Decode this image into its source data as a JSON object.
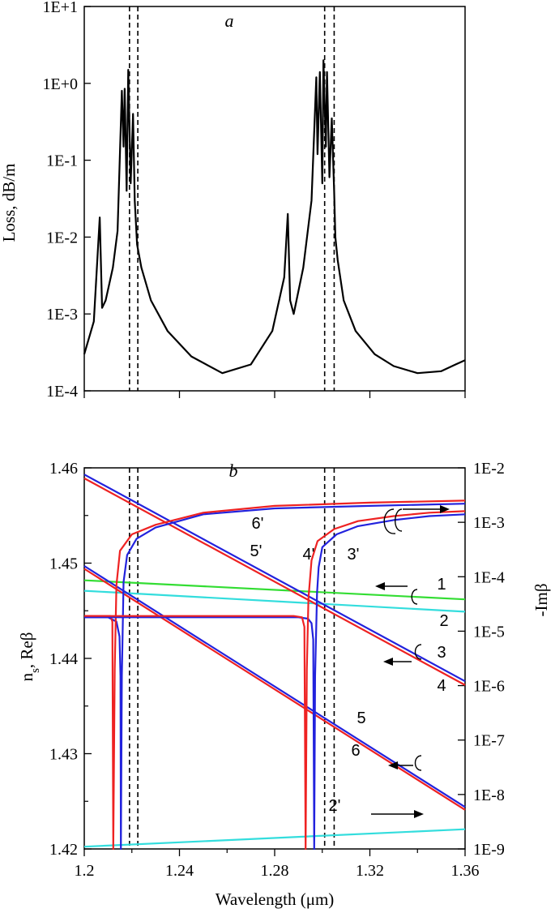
{
  "chart_data": [
    {
      "panel": "a",
      "type": "line",
      "panel_label": "a",
      "ylabel": "Loss, dB/m",
      "xlabel": "",
      "x_scale": "linear",
      "y_scale": "log",
      "xlim": [
        1.2,
        1.36
      ],
      "ylim": [
        0.0001,
        10
      ],
      "y_tick_labels": [
        "1E-4",
        "1E-3",
        "1E-2",
        "1E-1",
        "1E+0",
        "1E+1"
      ],
      "grid": false,
      "dashed_vlines": [
        1.219,
        1.2225,
        1.301,
        1.305
      ],
      "series": [
        {
          "color": "#000000",
          "x": [
            1.2,
            1.204,
            1.2065,
            1.2075,
            1.209,
            1.212,
            1.214,
            1.2158,
            1.2165,
            1.217,
            1.2178,
            1.2185,
            1.2195,
            1.2205,
            1.2212,
            1.2222,
            1.224,
            1.228,
            1.235,
            1.245,
            1.258,
            1.27,
            1.279,
            1.284,
            1.2855,
            1.2865,
            1.288,
            1.292,
            1.2955,
            1.2975,
            1.298,
            1.299,
            1.3,
            1.3005,
            1.3015,
            1.302,
            1.303,
            1.304,
            1.305,
            1.3055,
            1.3065,
            1.309,
            1.314,
            1.322,
            1.33,
            1.34,
            1.35,
            1.356,
            1.36
          ],
          "y": [
            0.0003,
            0.0008,
            0.018,
            0.0012,
            0.0015,
            0.004,
            0.012,
            0.8,
            0.15,
            0.85,
            0.04,
            1.5,
            0.05,
            0.4,
            0.03,
            0.008,
            0.004,
            0.0015,
            0.0006,
            0.00028,
            0.00017,
            0.00022,
            0.0006,
            0.003,
            0.02,
            0.0015,
            0.001,
            0.004,
            0.03,
            1.2,
            0.12,
            1.4,
            0.05,
            2.0,
            0.15,
            1.4,
            0.06,
            0.35,
            0.04,
            0.01,
            0.005,
            0.0015,
            0.0006,
            0.0003,
            0.00021,
            0.00017,
            0.00018,
            0.00022,
            0.00025
          ]
        }
      ]
    },
    {
      "panel": "b",
      "type": "line",
      "panel_label": "b",
      "xlabel": "Wavelength (μm)",
      "ylabel_left": "n_s, Reβ",
      "ylabel_right": "-Imβ",
      "xlim": [
        1.2,
        1.36
      ],
      "x_tick_labels": [
        "1.2",
        "1.24",
        "1.28",
        "1.32",
        "1.36"
      ],
      "x_ticks": [
        1.2,
        1.24,
        1.28,
        1.32,
        1.36
      ],
      "ylim_left": [
        1.42,
        1.46
      ],
      "y_left_tick_labels": [
        "1.42",
        "1.43",
        "1.44",
        "1.45",
        "1.46"
      ],
      "y_left_ticks": [
        1.42,
        1.43,
        1.44,
        1.45,
        1.46
      ],
      "ylim_right": [
        1e-09,
        0.01
      ],
      "y_right_scale": "log",
      "y_right_tick_labels": [
        "1E-9",
        "1E-8",
        "1E-7",
        "1E-6",
        "1E-5",
        "1E-4",
        "1E-3",
        "1E-2"
      ],
      "grid": false,
      "dashed_vlines": [
        1.219,
        1.2225,
        1.301,
        1.305
      ],
      "curve_labels": [
        "6'",
        "5'",
        "4'",
        "3'",
        "1",
        "2",
        "3",
        "4",
        "5",
        "6",
        "2'"
      ],
      "series": [
        {
          "label": "1",
          "axis": "left",
          "color": "#33dd33",
          "x": [
            1.2,
            1.36
          ],
          "y": [
            1.4482,
            1.4462
          ]
        },
        {
          "label": "2",
          "axis": "left",
          "color": "#33dddd",
          "x": [
            1.2,
            1.36
          ],
          "y": [
            1.4471,
            1.4449
          ]
        },
        {
          "label": "3",
          "axis": "left",
          "color": "#2222dd",
          "x": [
            1.2,
            1.36
          ],
          "y": [
            1.4593,
            1.4376
          ]
        },
        {
          "label": "4",
          "axis": "left",
          "color": "#ee2222",
          "x": [
            1.2,
            1.36
          ],
          "y": [
            1.4589,
            1.4372
          ]
        },
        {
          "label": "5",
          "axis": "left",
          "color": "#2222dd",
          "x": [
            1.2,
            1.36
          ],
          "y": [
            1.4497,
            1.4244
          ]
        },
        {
          "label": "6",
          "axis": "left",
          "color": "#ee2222",
          "x": [
            1.2,
            1.36
          ],
          "y": [
            1.4494,
            1.4241
          ]
        },
        {
          "label": "2'",
          "axis": "right",
          "color": "#33dddd",
          "x": [
            1.2,
            1.36
          ],
          "y": [
            1.1e-09,
            2.3e-09
          ]
        },
        {
          "label": "3'",
          "axis": "right",
          "color": "#2222dd",
          "x": [
            1.2,
            1.21,
            1.2135,
            1.2148,
            1.2152,
            1.2154,
            1.2158,
            1.2165,
            1.218,
            1.222,
            1.23,
            1.25,
            1.28,
            1.32,
            1.36
          ],
          "y": [
            1.8e-05,
            1.8e-05,
            1.5e-05,
            8e-06,
            1.5e-06,
            1e-09,
            1.5e-06,
            8e-05,
            0.00025,
            0.0005,
            0.0008,
            0.0014,
            0.0018,
            0.002,
            0.0022
          ]
        },
        {
          "label": "4'",
          "axis": "right",
          "color": "#ee2222",
          "x": [
            1.2,
            1.208,
            1.211,
            1.2118,
            1.2122,
            1.2128,
            1.2135,
            1.215,
            1.22,
            1.23,
            1.25,
            1.28,
            1.32,
            1.36
          ],
          "y": [
            1.9e-05,
            1.9e-05,
            1.9e-05,
            1.5e-05,
            1e-09,
            2e-06,
            7e-05,
            0.0003,
            0.0006,
            0.0009,
            0.0015,
            0.002,
            0.0023,
            0.0025
          ]
        },
        {
          "label": "5'",
          "axis": "right",
          "color": "#2222dd",
          "x": [
            1.2,
            1.25,
            1.28,
            1.29,
            1.294,
            1.2955,
            1.2962,
            1.2966,
            1.297,
            1.2978,
            1.2985,
            1.3,
            1.306,
            1.315,
            1.33,
            1.345,
            1.36
          ],
          "y": [
            1.8e-05,
            1.8e-05,
            1.8e-05,
            1.8e-05,
            1.7e-05,
            1.4e-05,
            7e-06,
            1e-09,
            1.5e-06,
            5e-05,
            0.00015,
            0.00035,
            0.0006,
            0.00085,
            0.0011,
            0.0013,
            0.0014
          ]
        },
        {
          "label": "6'",
          "axis": "right",
          "color": "#ee2222",
          "x": [
            1.2,
            1.25,
            1.28,
            1.288,
            1.2915,
            1.2925,
            1.293,
            1.2935,
            1.2942,
            1.2955,
            1.298,
            1.305,
            1.315,
            1.33,
            1.345,
            1.36
          ],
          "y": [
            1.9e-05,
            1.9e-05,
            1.9e-05,
            1.9e-05,
            1.8e-05,
            1.2e-05,
            1e-09,
            2e-06,
            4e-05,
            0.0002,
            0.00045,
            0.00075,
            0.00105,
            0.0013,
            0.0015,
            0.0016
          ]
        }
      ]
    }
  ]
}
